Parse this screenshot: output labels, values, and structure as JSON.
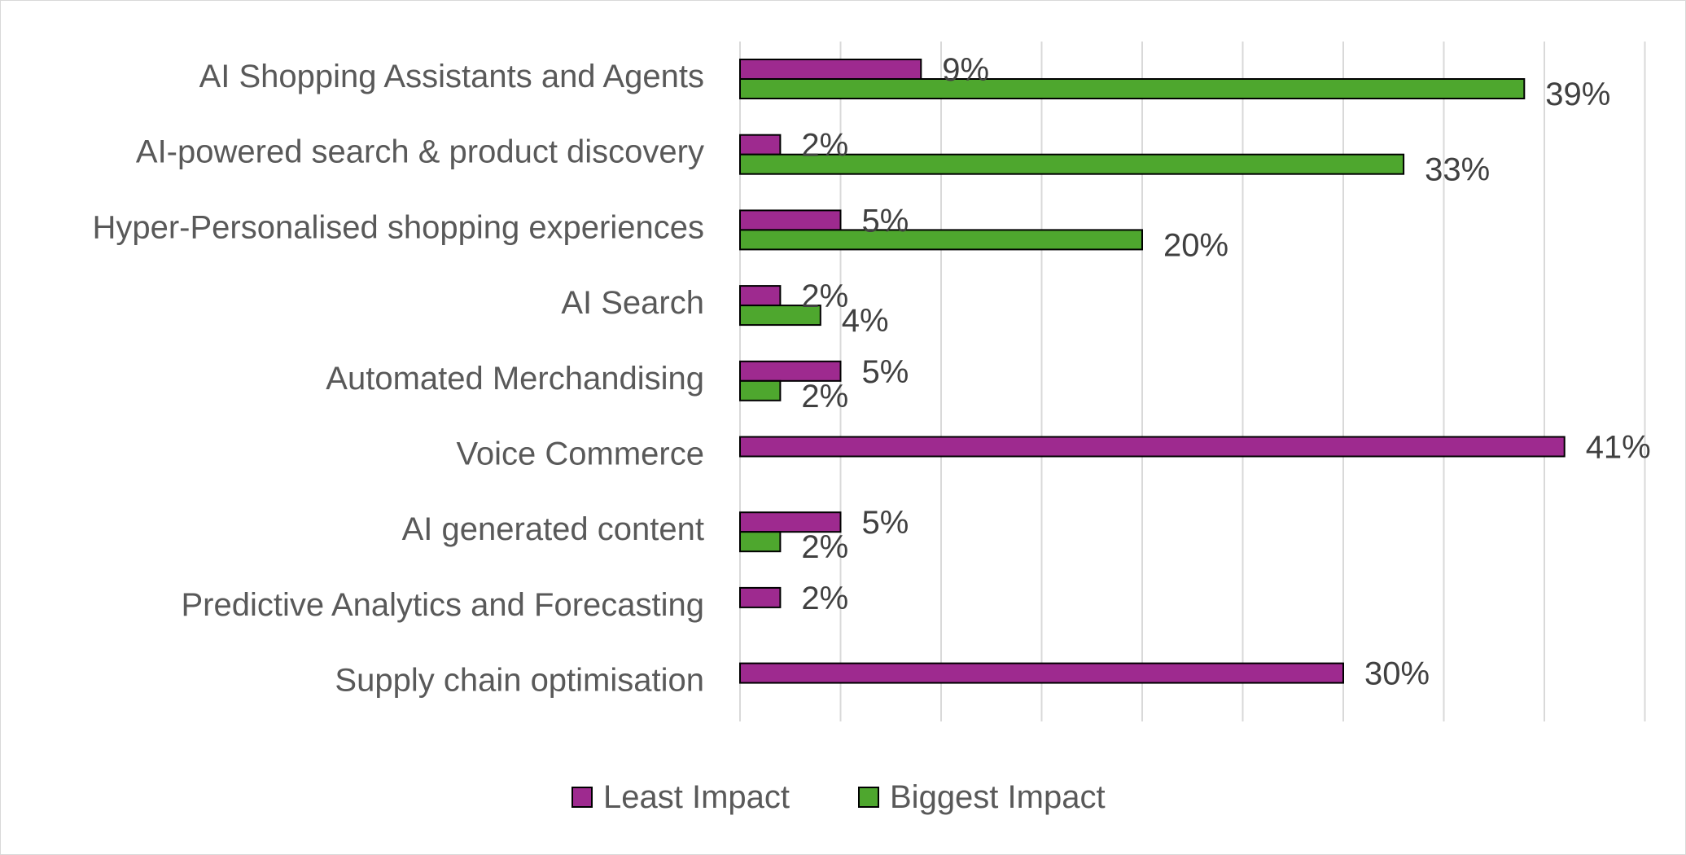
{
  "chart_data": {
    "type": "bar",
    "orientation": "horizontal",
    "title": "",
    "xlabel": "",
    "ylabel": "",
    "xlim": [
      0,
      45
    ],
    "grid": true,
    "legend_position": "bottom",
    "categories": [
      "AI Shopping Assistants and Agents",
      "AI-powered search & product discovery",
      "Hyper-Personalised shopping experiences",
      "AI Search",
      "Automated Merchandising",
      "Voice Commerce",
      "AI generated content",
      "Predictive Analytics and Forecasting",
      "Supply chain optimisation"
    ],
    "series": [
      {
        "name": "Least Impact",
        "color": "#9e2a8f",
        "values": [
          9,
          2,
          5,
          2,
          5,
          41,
          5,
          2,
          30
        ],
        "labels": [
          "9%",
          "2%",
          "5%",
          "2%",
          "5%",
          "41%",
          "5%",
          "2%",
          "30%"
        ]
      },
      {
        "name": "Biggest Impact",
        "color": "#4ea72e",
        "values": [
          39,
          33,
          20,
          4,
          2,
          null,
          2,
          null,
          null
        ],
        "labels": [
          "39%",
          "33%",
          "20%",
          "4%",
          "2%",
          "",
          "2%",
          "",
          ""
        ]
      }
    ]
  }
}
